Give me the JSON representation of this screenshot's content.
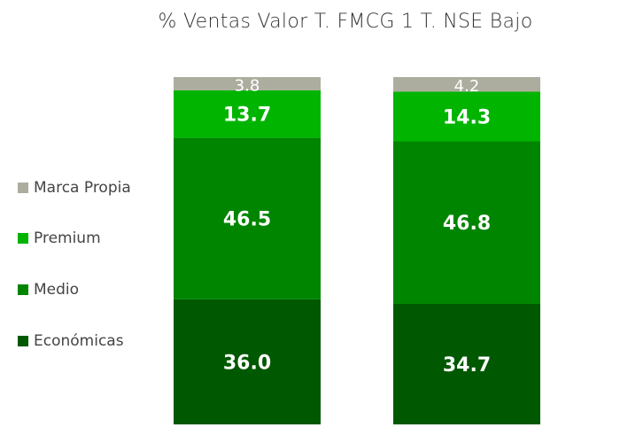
{
  "chart_data": {
    "type": "stacked-bar",
    "title": "% Ventas Valor  T. FMCG 1 T. NSE Bajo",
    "categories": [
      "",
      ""
    ],
    "series": [
      {
        "name": "Económicas",
        "values": [
          36.0,
          34.7
        ],
        "color": "#005800"
      },
      {
        "name": "Medio",
        "values": [
          46.5,
          46.8
        ],
        "color": "#008500"
      },
      {
        "name": "Premium",
        "values": [
          13.7,
          14.3
        ],
        "color": "#00b400"
      },
      {
        "name": "Marca Propia",
        "values": [
          3.8,
          4.2
        ],
        "color": "#adad9f"
      }
    ],
    "ylim": [
      0,
      100
    ],
    "grid": false,
    "legend": "left"
  }
}
